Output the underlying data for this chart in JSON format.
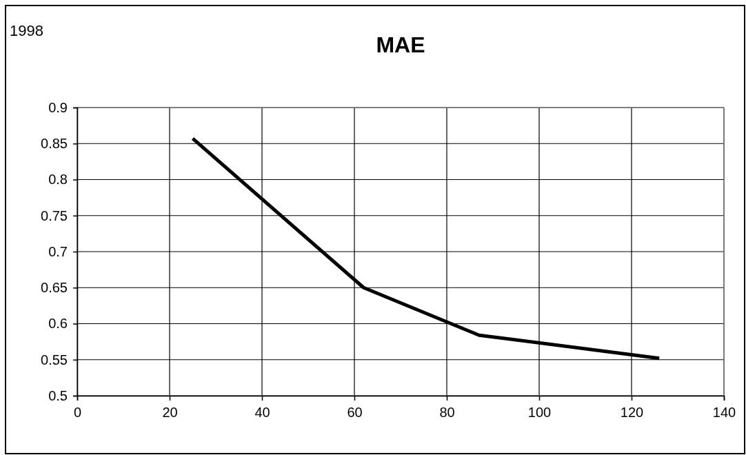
{
  "chart_data": {
    "type": "line",
    "title": "MAE",
    "annotations": [
      "1998"
    ],
    "x": [
      25,
      62,
      87,
      126
    ],
    "series": [
      {
        "color": "#000000",
        "values": [
          0.857,
          0.65,
          0.584,
          0.552
        ]
      }
    ],
    "xlim": [
      0,
      140
    ],
    "xticks": [
      0,
      20,
      40,
      60,
      80,
      100,
      120,
      140
    ],
    "ylim": [
      0.5,
      0.9
    ],
    "yticks": [
      0.5,
      0.55,
      0.6,
      0.65,
      0.7,
      0.75,
      0.8,
      0.85,
      0.9
    ],
    "grid": true,
    "marker": "none",
    "line_style": "solid"
  }
}
